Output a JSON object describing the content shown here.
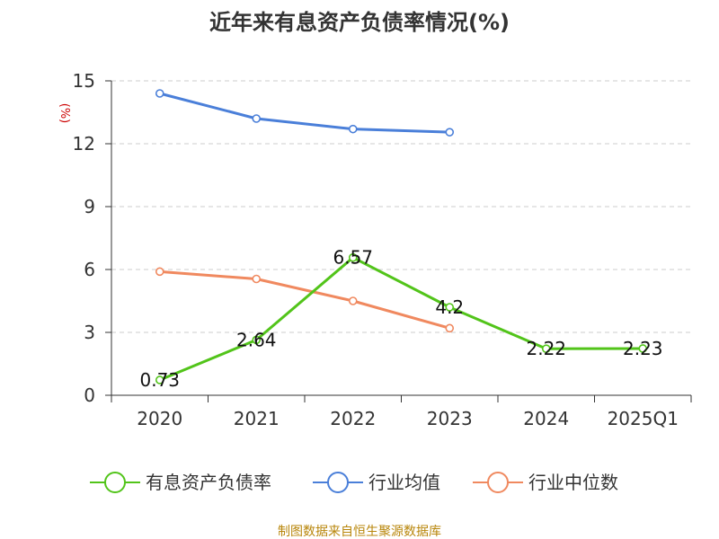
{
  "title": "近年来有息资产负债率情况(%)",
  "source": "制图数据来自恒生聚源数据库",
  "chart_data": {
    "type": "line",
    "title": "近年来有息资产负债率情况(%)",
    "ylabel": "(%)",
    "xlabel": "",
    "categories": [
      "2020",
      "2021",
      "2022",
      "2023",
      "2024",
      "2025Q1"
    ],
    "ylim": [
      0,
      15
    ],
    "yticks": [
      0,
      3,
      6,
      9,
      12,
      15
    ],
    "grid": true,
    "legend_position": "bottom",
    "series": [
      {
        "name": "有息资产负债率",
        "color": "#52c41a",
        "values": [
          0.73,
          2.64,
          6.57,
          4.2,
          2.22,
          2.23
        ],
        "labels": [
          "0.73",
          "2.64",
          "6.57",
          "4.2",
          "2.22",
          "2.23"
        ]
      },
      {
        "name": "行业均值",
        "color": "#4a7fd9",
        "values": [
          14.4,
          13.2,
          12.7,
          12.55,
          null,
          null
        ]
      },
      {
        "name": "行业中位数",
        "color": "#f0895f",
        "values": [
          5.9,
          5.55,
          4.5,
          3.2,
          null,
          null
        ]
      }
    ]
  }
}
